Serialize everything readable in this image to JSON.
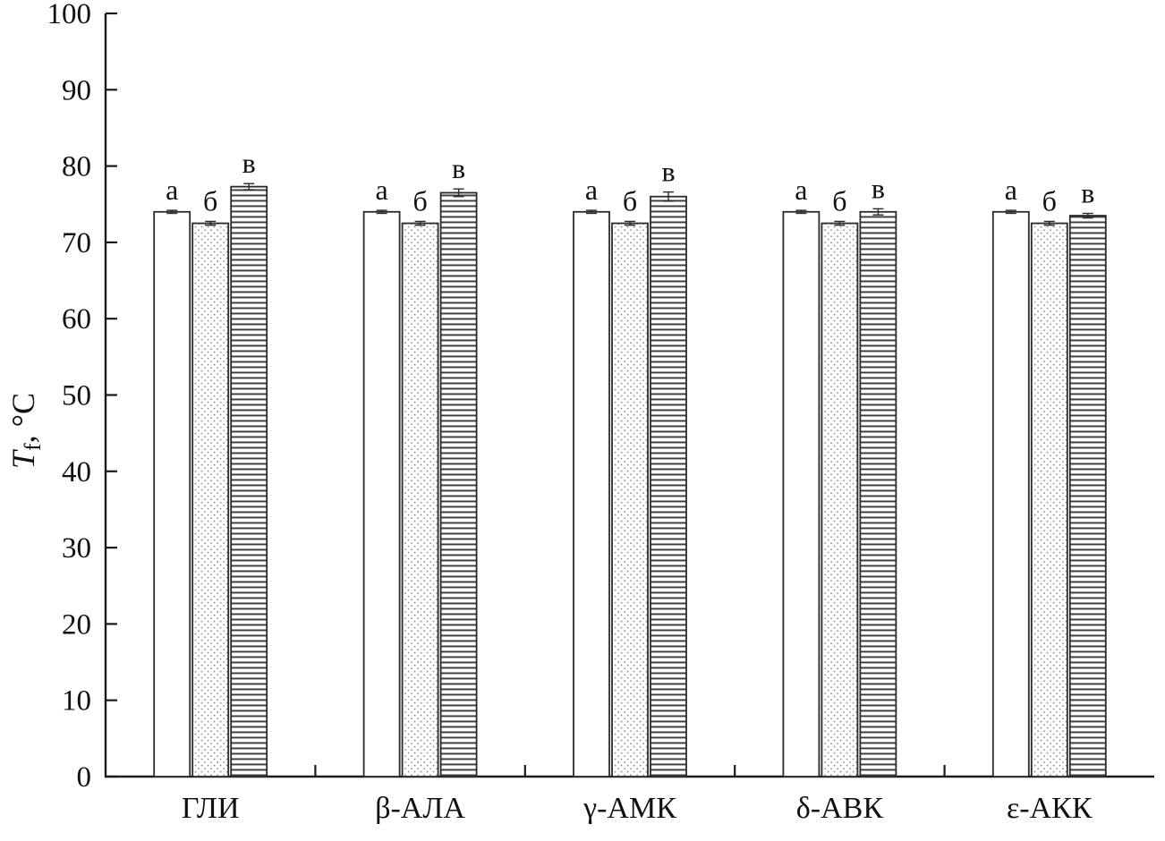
{
  "chart_data": {
    "type": "bar",
    "title": "",
    "xlabel": "",
    "ylabel": {
      "symbol": "T",
      "subscript": "f",
      "suffix": ", °C"
    },
    "ylim": [
      0,
      100
    ],
    "ytick_step": 10,
    "yticks": [
      0,
      10,
      20,
      30,
      40,
      50,
      60,
      70,
      80,
      90,
      100
    ],
    "grid": false,
    "legend": false,
    "categories": [
      "ГЛИ",
      "β-АЛА",
      "γ-АМК",
      "δ-АВК",
      "ε-АКК"
    ],
    "series": [
      {
        "name": "а",
        "pattern": "plain",
        "values": [
          74.0,
          74.0,
          74.0,
          74.0,
          74.0
        ],
        "errors": [
          0.2,
          0.2,
          0.2,
          0.2,
          0.2
        ]
      },
      {
        "name": "б",
        "pattern": "dots",
        "values": [
          72.5,
          72.5,
          72.5,
          72.5,
          72.5
        ],
        "errors": [
          0.25,
          0.25,
          0.25,
          0.25,
          0.25
        ]
      },
      {
        "name": "в",
        "pattern": "hlines",
        "values": [
          77.3,
          76.5,
          76.0,
          74.0,
          73.5
        ],
        "errors": [
          0.4,
          0.5,
          0.6,
          0.4,
          0.3
        ]
      }
    ]
  },
  "colors": {
    "axis": "#1a1a1a",
    "bar_stroke": "#2a2a2a",
    "bar_fill": "#ffffff",
    "dot_pattern": "#8a8a8a",
    "hline_pattern": "#3a3a3a",
    "error_bar": "#2a2a2a",
    "text": "#111111"
  }
}
